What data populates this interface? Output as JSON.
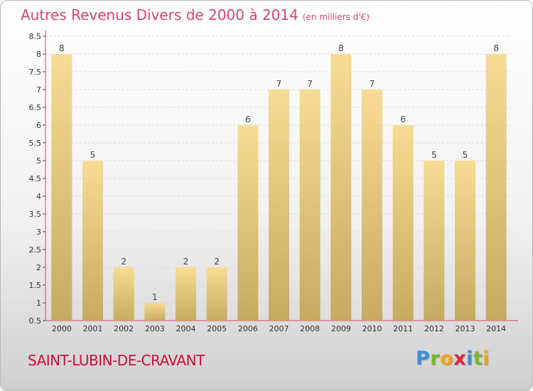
{
  "header": {
    "title": "Autres Revenus Divers de 2000 à 2014",
    "subtitle": "(en milliers d'€)"
  },
  "footer": {
    "place": "SAINT-LUBIN-DE-CRAVANT"
  },
  "logo": {
    "letters": [
      "P",
      "r",
      "o",
      "x",
      "i",
      "t",
      "i"
    ],
    "colors": [
      "#3f8ed6",
      "#78b82a",
      "#f2a31b",
      "#d8283c",
      "#3f8ed6",
      "#78b82a",
      "#f2a31b"
    ]
  },
  "chart_data": {
    "type": "bar",
    "title": "Autres Revenus Divers de 2000 à 2014",
    "subtitle": "(en milliers d'€)",
    "categories": [
      "2000",
      "2001",
      "2002",
      "2003",
      "2004",
      "2005",
      "2006",
      "2007",
      "2008",
      "2009",
      "2010",
      "2011",
      "2012",
      "2013",
      "2014"
    ],
    "values": [
      8,
      5,
      2,
      1,
      2,
      2,
      6,
      7,
      7,
      8,
      7,
      6,
      5,
      5,
      8
    ],
    "ylim": [
      0.5,
      8.5
    ],
    "yticks": [
      "0.5",
      "1",
      "1.5",
      "2",
      "2.5",
      "3",
      "3.5",
      "4",
      "4.5",
      "5",
      "5.5",
      "6",
      "6.5",
      "7",
      "7.5",
      "8",
      "8.5"
    ],
    "grid": true,
    "bar_color_top": "#f7dc94",
    "bar_color_bottom": "#c6aa62",
    "axis_color": "#d6456e"
  }
}
